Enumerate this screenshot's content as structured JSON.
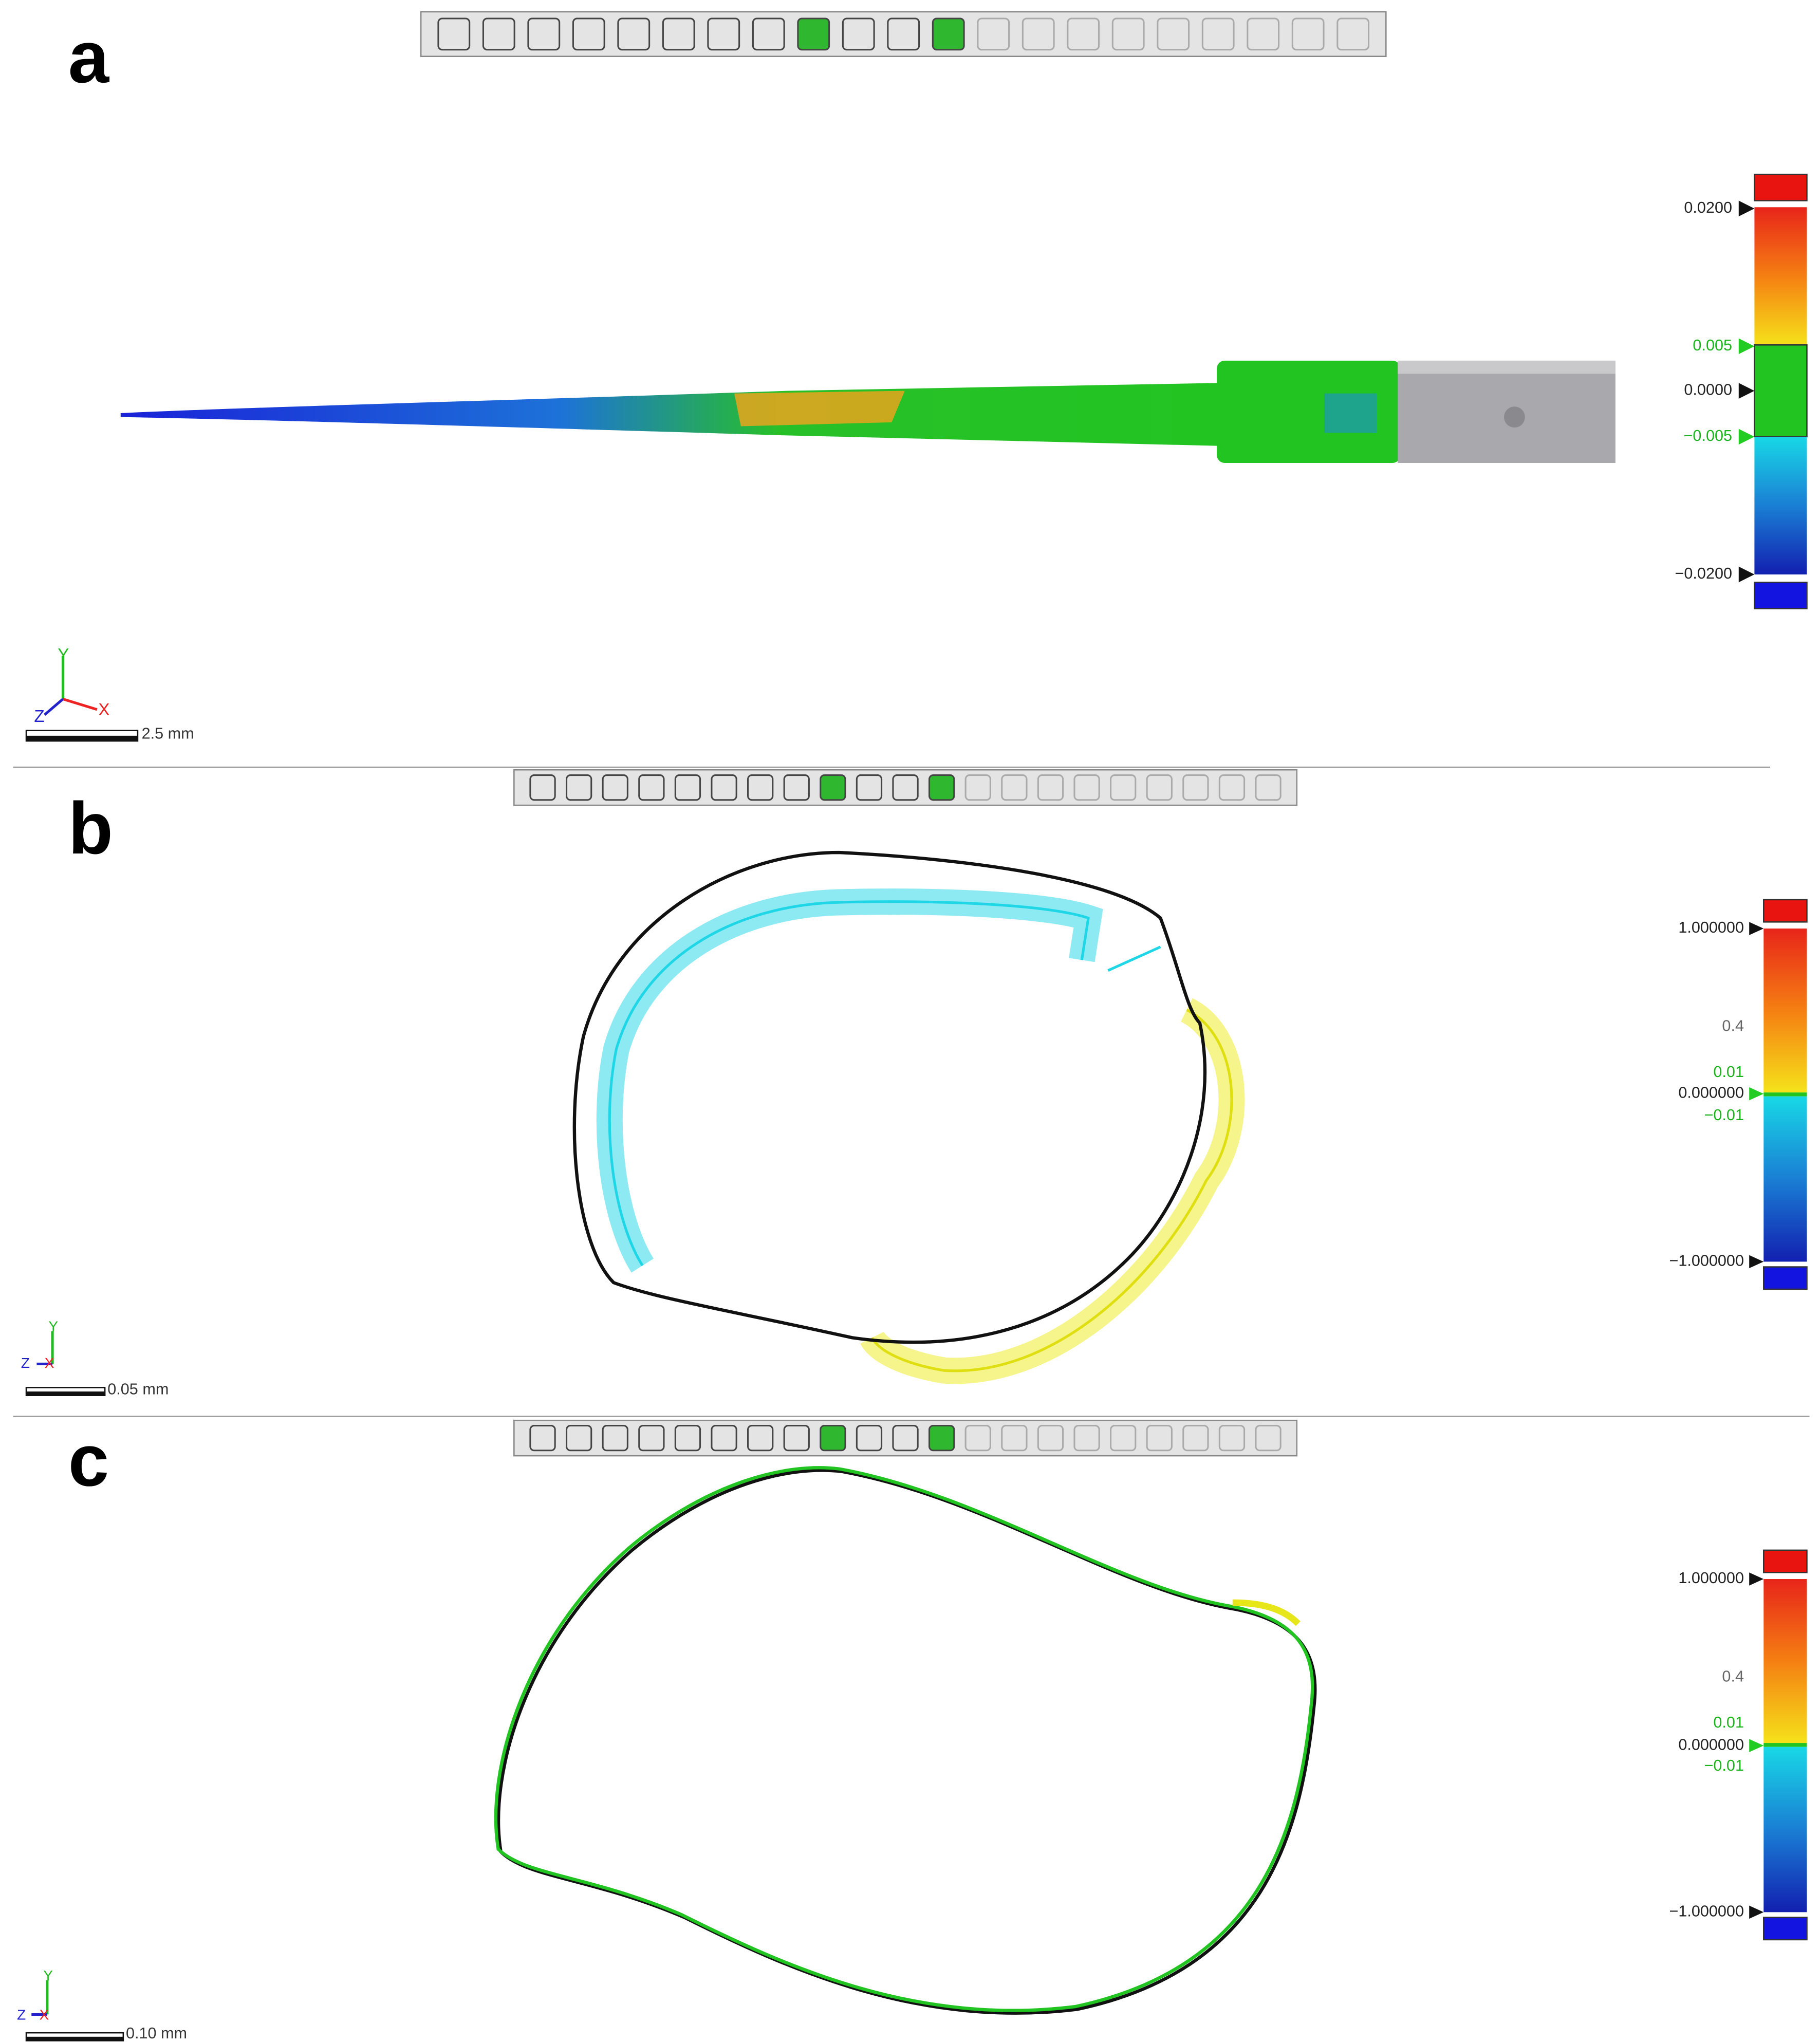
{
  "panels": [
    {
      "label": "a",
      "scale_bar": "2.5 mm",
      "axes": {
        "y": "Y",
        "x": "X",
        "z": "Z"
      },
      "color_scale": [
        "0.0200",
        "0.005",
        "0.0000",
        "−0.005",
        "−0.0200"
      ]
    },
    {
      "label": "b",
      "scale_bar": "0.05 mm",
      "axes": {
        "y": "Y",
        "x": "X",
        "z": "Z"
      },
      "color_scale": [
        "1.000000",
        "0.4",
        "0.01",
        "0.000000",
        "−0.01",
        "−1.000000"
      ]
    },
    {
      "label": "c",
      "scale_bar": "0.10 mm",
      "axes": {
        "y": "Y",
        "x": "X",
        "z": "Z"
      },
      "color_scale": [
        "1.000000",
        "0.4",
        "0.01",
        "0.000000",
        "−0.01",
        "−1.000000"
      ]
    }
  ]
}
